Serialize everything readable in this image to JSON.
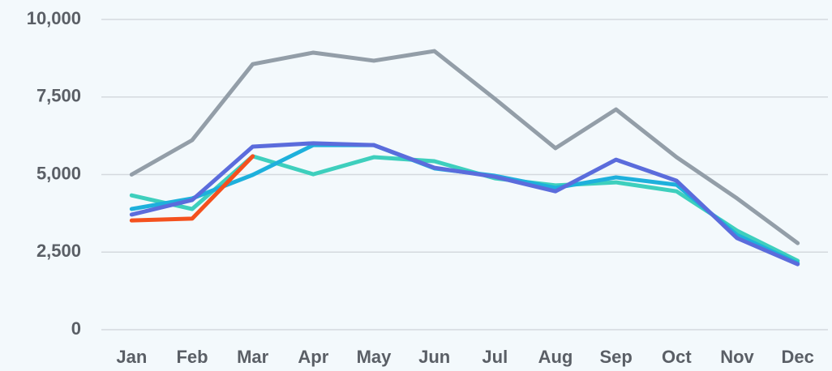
{
  "chart_data": {
    "type": "line",
    "categories": [
      "Jan",
      "Feb",
      "Mar",
      "Apr",
      "May",
      "Jun",
      "Jul",
      "Aug",
      "Sep",
      "Oct",
      "Nov",
      "Dec"
    ],
    "series": [
      {
        "color": "#939ea8",
        "values": [
          5000,
          6110,
          8560,
          8930,
          8670,
          8980,
          7440,
          5850,
          7100,
          5560,
          4230,
          2790
        ]
      },
      {
        "color": "#3ecfbd",
        "values": [
          4330,
          3890,
          5590,
          5010,
          5560,
          5430,
          4880,
          4650,
          4750,
          4460,
          3190,
          2220
        ]
      },
      {
        "color": "#1eb0dc",
        "values": [
          3890,
          4230,
          4990,
          5950,
          5950,
          5200,
          4960,
          4570,
          4910,
          4670,
          3050,
          2140
        ]
      },
      {
        "color": "#5b6cdc",
        "values": [
          3710,
          4180,
          5900,
          6010,
          5950,
          5220,
          4930,
          4460,
          5480,
          4800,
          2950,
          2110
        ]
      },
      {
        "color": "#f4511e",
        "values": [
          3520,
          3580,
          5590,
          null,
          null,
          null,
          null,
          null,
          null,
          null,
          null,
          null
        ]
      }
    ],
    "ylim": [
      0,
      10000
    ],
    "yticks": [
      0,
      {
        "value": 2500,
        "label": "2,500"
      },
      {
        "value": 5000,
        "label": "5,000"
      },
      {
        "value": 7500,
        "label": "7,500"
      },
      {
        "value": 10000,
        "label": "10,000"
      }
    ],
    "grid": true
  }
}
